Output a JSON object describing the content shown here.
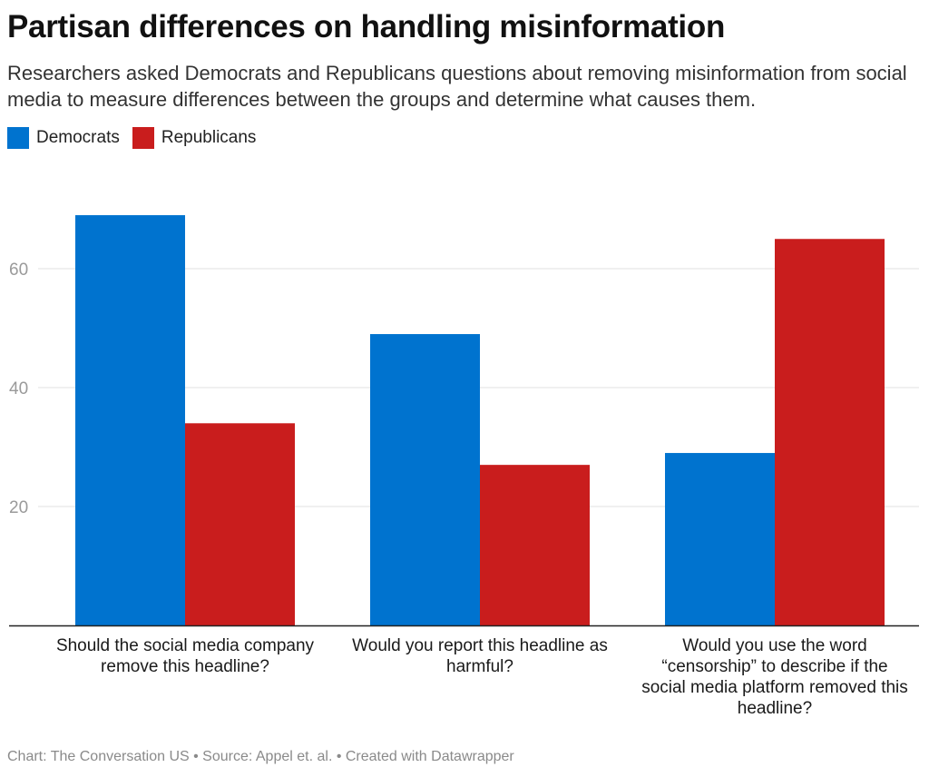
{
  "title": "Partisan differences on handling misinformation",
  "subtitle": "Researchers asked Democrats and Republicans questions about removing misinformation from social media to measure differences between the groups and determine what causes them.",
  "footer": "Chart: The Conversation US • Source: Appel et. al. • Created with Datawrapper",
  "colors": {
    "democrats": "#0073cf",
    "republicans": "#c91d1d",
    "grid": "#e0e0e0",
    "tick": "#9a9a9a",
    "axis": "#222222"
  },
  "chart_data": {
    "type": "bar",
    "categories": [
      "Should the social media company remove this headline?",
      "Would you report this headline as harmful?",
      "Would you use the word “censorship” to describe if the social media platform removed this headline?"
    ],
    "series": [
      {
        "name": "Democrats",
        "values": [
          69,
          49,
          29
        ]
      },
      {
        "name": "Republicans",
        "values": [
          34,
          27,
          65
        ]
      }
    ],
    "yticks": [
      20,
      40,
      60
    ],
    "ylim": [
      0,
      70
    ],
    "grid": true,
    "legend": "top-left"
  }
}
